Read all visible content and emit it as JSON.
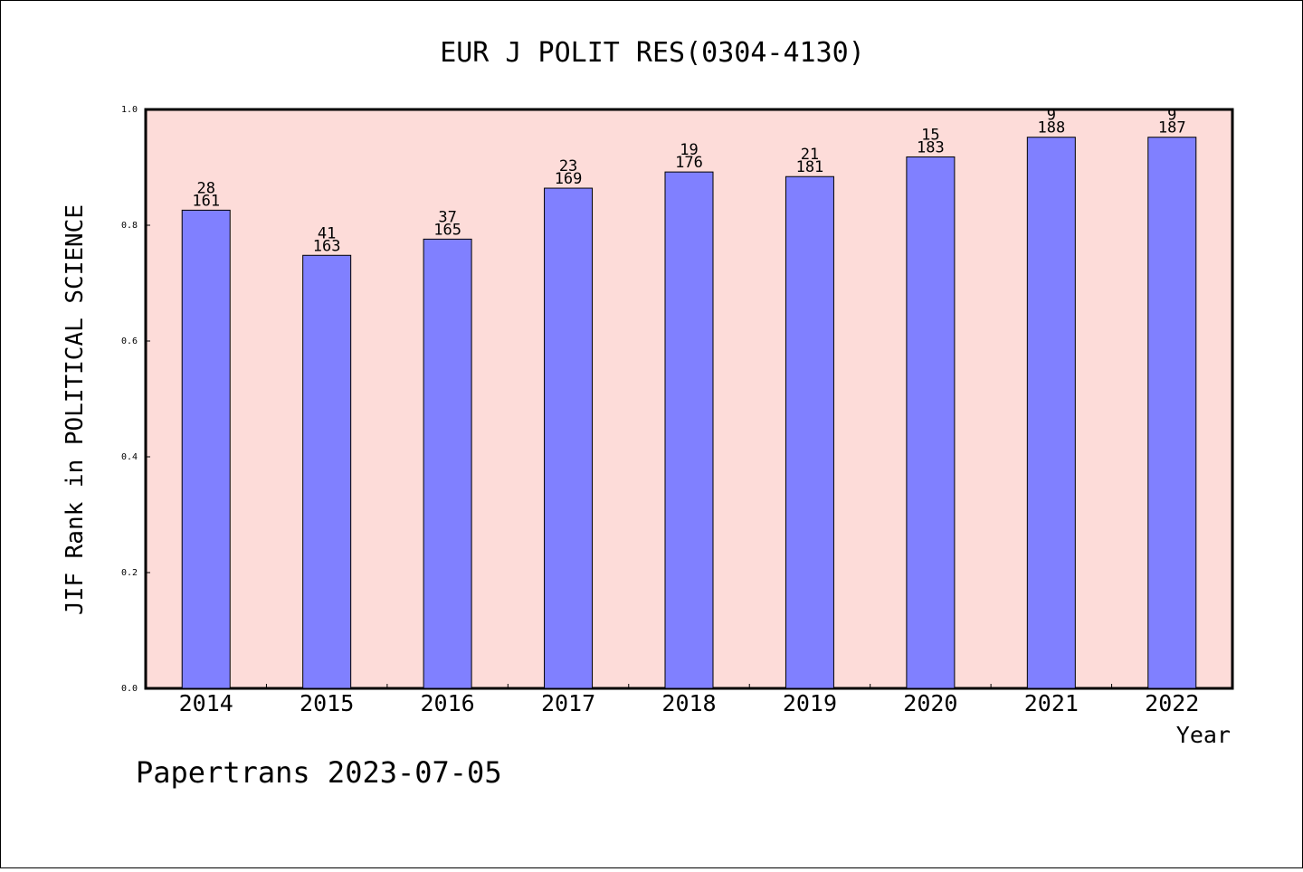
{
  "chart_data": {
    "type": "bar",
    "title": "EUR J POLIT RES(0304-4130)",
    "xlabel": "Year",
    "ylabel": "JIF Rank in POLITICAL SCIENCE",
    "ylim": [
      0,
      1.0
    ],
    "yticks": [
      "0.0",
      "0.2",
      "0.4",
      "0.6",
      "0.8",
      "1.0"
    ],
    "categories": [
      "2014",
      "2015",
      "2016",
      "2017",
      "2018",
      "2019",
      "2020",
      "2021",
      "2022"
    ],
    "values": [
      0.826,
      0.748,
      0.776,
      0.864,
      0.892,
      0.884,
      0.918,
      0.952,
      0.952
    ],
    "rank": [
      "28",
      "41",
      "37",
      "23",
      "19",
      "21",
      "15",
      "9",
      "9"
    ],
    "total": [
      "161",
      "163",
      "165",
      "169",
      "176",
      "181",
      "183",
      "188",
      "187"
    ],
    "grid": false,
    "colors": {
      "plot_background": "#fddcd9",
      "bar_fill": "#8080ff",
      "bar_stroke": "#000000"
    }
  },
  "footer": {
    "credit": "Papertrans 2023-07-05"
  }
}
